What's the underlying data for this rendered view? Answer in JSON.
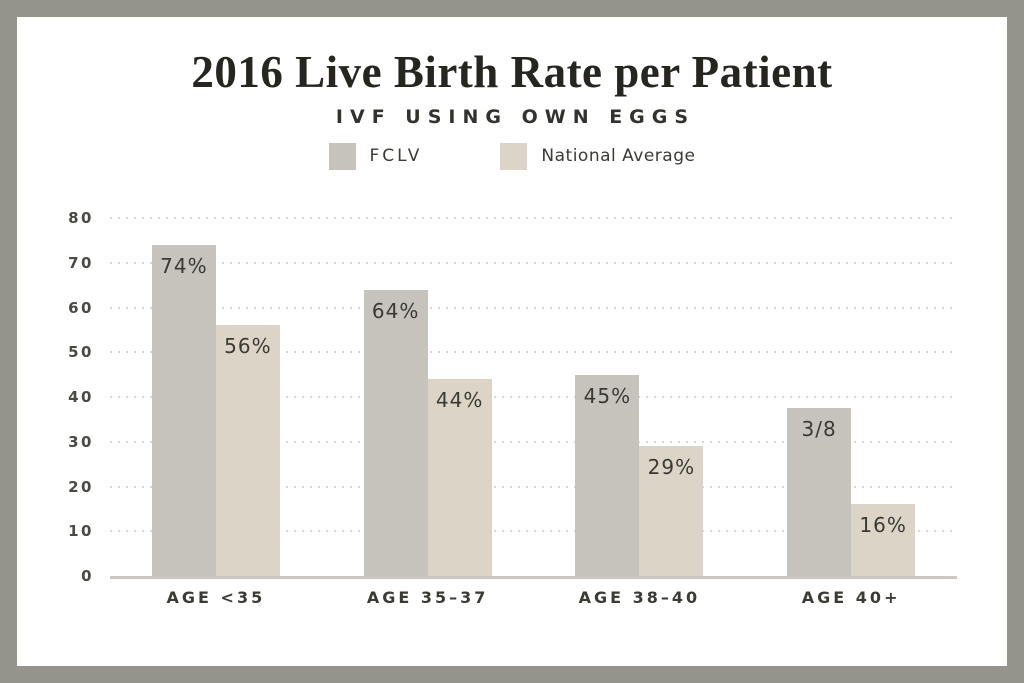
{
  "frame": {
    "border_color": "#95948a",
    "card_background": "#ffffff"
  },
  "header": {
    "title": "2016 Live Birth Rate per Patient",
    "subtitle": "IVF USING OWN EGGS"
  },
  "legend": {
    "items": [
      {
        "label": "FCLV",
        "color": "#c5c3bc",
        "tracking": "3px"
      },
      {
        "label": "National Average",
        "color": "#dcd5c7",
        "tracking": "0.5px"
      }
    ]
  },
  "chart_data": {
    "type": "bar",
    "title": "2016 Live Birth Rate per Patient",
    "subtitle": "IVF USING OWN EGGS",
    "categories": [
      "AGE <35",
      "AGE 35–37",
      "AGE 38–40",
      "AGE 40+"
    ],
    "series": [
      {
        "name": "FCLV",
        "color": "#c5c3bc",
        "values": [
          74,
          64,
          45,
          37.5
        ],
        "bar_labels": [
          "74%",
          "64%",
          "45%",
          "3/8"
        ]
      },
      {
        "name": "National Average",
        "color": "#dcd5c7",
        "values": [
          56,
          44,
          29,
          16
        ],
        "bar_labels": [
          "56%",
          "44%",
          "29%",
          "16%"
        ]
      }
    ],
    "ylim": [
      0,
      80
    ],
    "yticks": [
      0,
      10,
      20,
      30,
      40,
      50,
      60,
      70,
      80
    ],
    "grid": "horizontal-dotted",
    "legend_position": "top-center",
    "axis_colors": {
      "grid": "#d8d6d2",
      "baseline": "#cbc8c4",
      "text": "#4a4944"
    }
  }
}
